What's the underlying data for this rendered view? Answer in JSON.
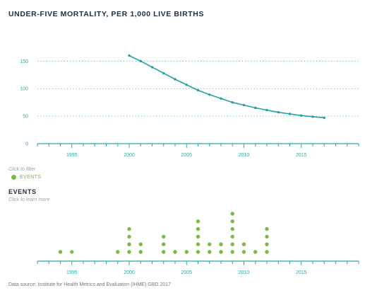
{
  "title": "UNDER-FIVE MORTALITY, PER 1,000 LIVE BIRTHS",
  "filter_hint": "Click to filter",
  "legend_label": "EVENTS",
  "events_heading": "EVENTS",
  "learn_hint": "Click to learn more",
  "source": "Data source: Institute for Health Metrics and Evaluation (IHME) GBD 2017",
  "colors": {
    "line": "#24a0a3",
    "events": "#7cb944",
    "axis": "#2fa6a6",
    "grid": "#2fa6a6"
  },
  "chart_data": [
    {
      "type": "line",
      "title": "UNDER-FIVE MORTALITY, PER 1,000 LIVE BIRTHS",
      "xlabel": "",
      "ylabel": "",
      "xlim": [
        1992,
        2020
      ],
      "ylim": [
        0,
        180
      ],
      "x_ticks": [
        1995,
        2000,
        2005,
        2010,
        2015
      ],
      "y_ticks": [
        0,
        50,
        100,
        150
      ],
      "grid": "horizontal dotted",
      "series": [
        {
          "x": [
            2000,
            2001,
            2002,
            2003,
            2004,
            2005,
            2006,
            2007,
            2008,
            2009,
            2010,
            2011,
            2012,
            2013,
            2014,
            2015,
            2016,
            2017
          ],
          "y": [
            160,
            150,
            139,
            128,
            117,
            107,
            97,
            89,
            82,
            75,
            70,
            65,
            61,
            57,
            54,
            51,
            49,
            47
          ]
        }
      ]
    },
    {
      "type": "scatter",
      "title": "EVENTS",
      "xlim": [
        1992,
        2020
      ],
      "x_ticks": [
        1995,
        2000,
        2005,
        2010,
        2015
      ],
      "description": "number of events per year (stacked dots)",
      "series": [
        {
          "name": "EVENTS",
          "x": [
            1994,
            1995,
            1999,
            2000,
            2001,
            2003,
            2004,
            2005,
            2006,
            2007,
            2008,
            2009,
            2010,
            2011,
            2012
          ],
          "counts": [
            1,
            1,
            1,
            4,
            2,
            3,
            1,
            1,
            5,
            2,
            2,
            6,
            2,
            1,
            4
          ]
        }
      ]
    }
  ]
}
